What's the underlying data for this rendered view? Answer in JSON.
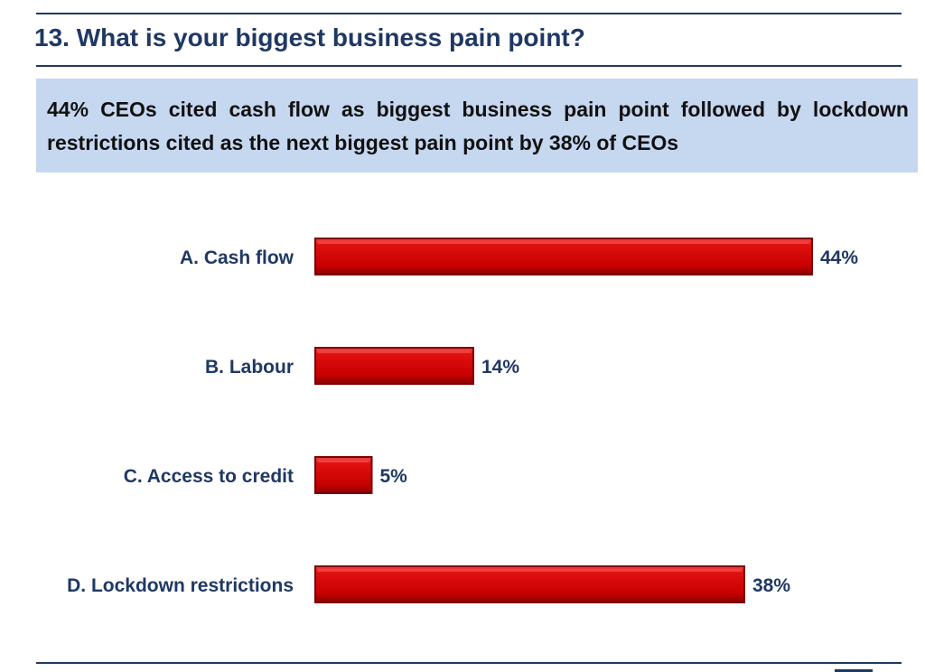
{
  "page": {
    "title": "13. What is your biggest business pain point?",
    "summary": "44% CEOs cited cash flow as biggest business pain point followed by lockdown restrictions cited as the next biggest pain point by 38% of CEOs"
  },
  "colors": {
    "bar_fill": "#d00000",
    "bar_dark": "#7a0000",
    "bar_light": "#f24a4a",
    "label_text": "#1f3864",
    "summary_bg": "#c6d7f0",
    "rule": "#1f3a60"
  },
  "chart_data": {
    "type": "bar",
    "orientation": "horizontal",
    "categories": [
      "A. Cash flow",
      "B. Labour",
      "C. Access to credit",
      "D. Lockdown restrictions"
    ],
    "values": [
      44,
      14,
      5,
      38
    ],
    "value_labels": [
      "44%",
      "14%",
      "5%",
      "38%"
    ],
    "unit": "%",
    "title": "",
    "xlabel": "",
    "ylabel": "",
    "xlim": [
      0,
      44
    ],
    "grid": false,
    "legend": "none"
  }
}
